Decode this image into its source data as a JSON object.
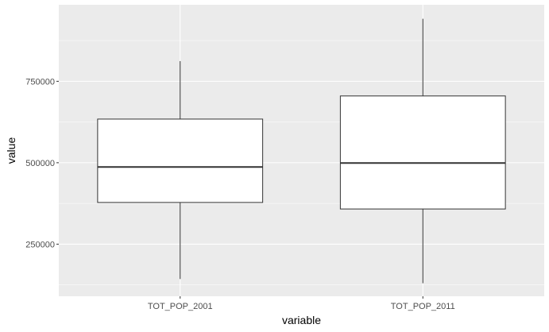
{
  "chart_data": {
    "type": "boxplot",
    "xlabel": "variable",
    "ylabel": "value",
    "categories": [
      "TOT_POP_2001",
      "TOT_POP_2011"
    ],
    "boxes": [
      {
        "category": "TOT_POP_2001",
        "min": 143000,
        "q1": 378000,
        "median": 487000,
        "q3": 634000,
        "max": 812000
      },
      {
        "category": "TOT_POP_2011",
        "min": 130000,
        "q1": 358000,
        "median": 499000,
        "q3": 705000,
        "max": 942000
      }
    ],
    "y_ticks": [
      250000,
      500000,
      750000
    ],
    "y_tick_labels": [
      "250000",
      "500000",
      "750000"
    ],
    "ylim": [
      90000,
      985000
    ],
    "grid": true,
    "colors": {
      "panel": "#ebebeb",
      "grid": "#ffffff",
      "box_fill": "#ffffff",
      "box_stroke": "#333333",
      "tick_label": "#4d4d4d"
    }
  }
}
